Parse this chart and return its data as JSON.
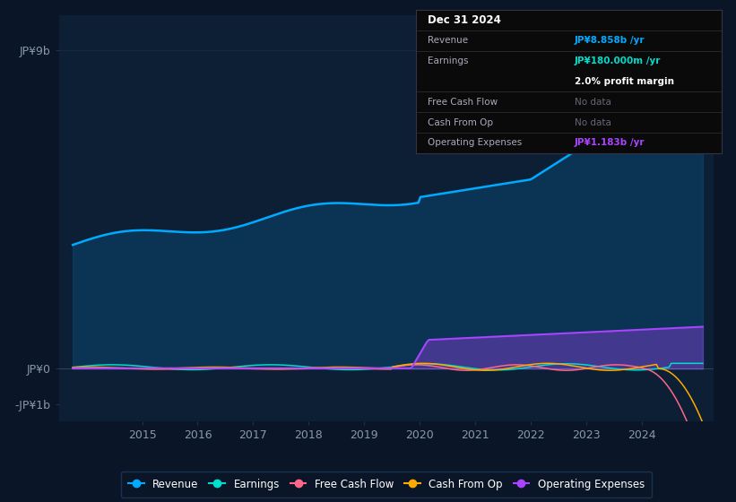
{
  "bg_color": "#0a1628",
  "plot_bg_color": "#0d1f35",
  "grid_color": "#1e3050",
  "text_color": "#ffffff",
  "label_color": "#8899aa",
  "ytick_labels": [
    "JP¥9b",
    "JP¥0",
    "-JP¥1b"
  ],
  "ytick_values": [
    9000000000,
    0,
    -1000000000
  ],
  "ylim": [
    -1500000000,
    10000000000
  ],
  "xlim_start": 2013.5,
  "xlim_end": 2025.3,
  "xtick_years": [
    2015,
    2016,
    2017,
    2018,
    2019,
    2020,
    2021,
    2022,
    2023,
    2024
  ],
  "revenue_color": "#00aaff",
  "earnings_color": "#00ddcc",
  "fcf_color": "#ff6688",
  "cashfromop_color": "#ffaa00",
  "opex_color": "#aa44ff",
  "legend_items": [
    "Revenue",
    "Earnings",
    "Free Cash Flow",
    "Cash From Op",
    "Operating Expenses"
  ],
  "legend_colors": [
    "#00aaff",
    "#00ddcc",
    "#ff6688",
    "#ffaa00",
    "#aa44ff"
  ],
  "tooltip_bg": "#0a0a0a",
  "tooltip_border": "#333344",
  "tooltip_title": "Dec 31 2024",
  "tooltip_revenue_label": "Revenue",
  "tooltip_revenue_val": "JP¥8.858b /yr",
  "tooltip_earnings_label": "Earnings",
  "tooltip_earnings_val": "JP¥180.000m /yr",
  "tooltip_margin": "2.0% profit margin",
  "tooltip_fcf_label": "Free Cash Flow",
  "tooltip_fcf_val": "No data",
  "tooltip_cashfromop_label": "Cash From Op",
  "tooltip_cashfromop_val": "No data",
  "tooltip_opex_label": "Operating Expenses",
  "tooltip_opex_val": "JP¥1.183b /yr",
  "tooltip_revenue_color": "#00aaff",
  "tooltip_earnings_color": "#00ddcc",
  "tooltip_nodata_color": "#666677",
  "tooltip_opex_color": "#aa44ff",
  "tooltip_white": "#ffffff",
  "tooltip_gray": "#aaaabb"
}
